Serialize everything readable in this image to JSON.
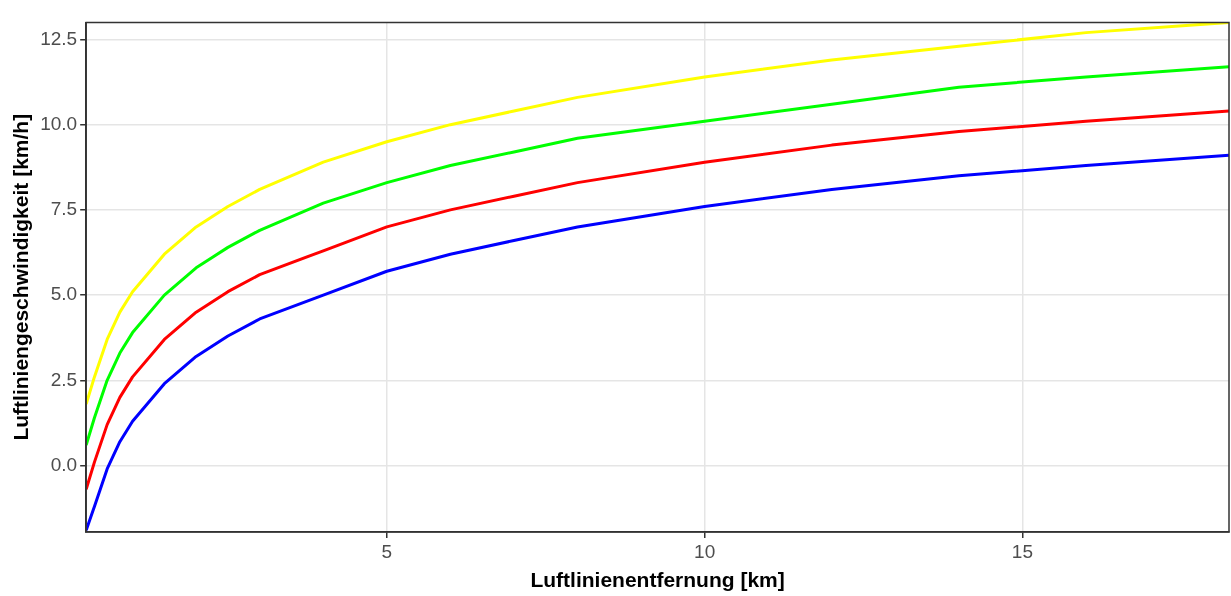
{
  "chart_data": {
    "type": "line",
    "xlabel": "Luftlinienentfernung [km]",
    "ylabel": "Luftliniengeschwindigkeit [km/h]",
    "x": [
      0.27,
      0.4,
      0.6,
      0.8,
      1,
      1.5,
      2,
      2.5,
      3,
      4,
      5,
      6,
      7,
      8,
      10,
      12,
      14,
      16,
      18.25
    ],
    "series": [
      {
        "color": "#0000ff",
        "values": [
          -1.9,
          -1.2,
          -0.1,
          0.7,
          1.3,
          2.4,
          3.2,
          3.8,
          4.3,
          5.0,
          5.7,
          6.2,
          6.6,
          7.0,
          7.6,
          8.1,
          8.5,
          8.8,
          9.1
        ]
      },
      {
        "color": "#ff0000",
        "values": [
          -0.7,
          0.1,
          1.2,
          2.0,
          2.6,
          3.7,
          4.5,
          5.1,
          5.6,
          6.3,
          7.0,
          7.5,
          7.9,
          8.3,
          8.9,
          9.4,
          9.8,
          10.1,
          10.4
        ]
      },
      {
        "color": "#00ff00",
        "values": [
          0.6,
          1.4,
          2.5,
          3.3,
          3.9,
          5.0,
          5.8,
          6.4,
          6.9,
          7.7,
          8.3,
          8.8,
          9.2,
          9.6,
          10.1,
          10.6,
          11.1,
          11.4,
          11.7
        ]
      },
      {
        "color": "#ffff00",
        "values": [
          1.8,
          2.6,
          3.7,
          4.5,
          5.1,
          6.2,
          7.0,
          7.6,
          8.1,
          8.9,
          9.5,
          10.0,
          10.4,
          10.8,
          11.4,
          11.9,
          12.3,
          12.7,
          13.0
        ]
      }
    ],
    "xlim": [
      0.27,
      18.25
    ],
    "ylim": [
      -1.95,
      13.0
    ],
    "xticks": [
      5,
      10,
      15
    ],
    "yticks": [
      {
        "value": 0,
        "label": "0.0"
      },
      {
        "value": 2.5,
        "label": "2.5"
      },
      {
        "value": 5,
        "label": "5.0"
      },
      {
        "value": 7.5,
        "label": "7.5"
      },
      {
        "value": 10,
        "label": "10.0"
      },
      {
        "value": 12.5,
        "label": "12.5"
      }
    ],
    "grid": true,
    "marker": "none",
    "line_style": "solid",
    "legend": false
  }
}
